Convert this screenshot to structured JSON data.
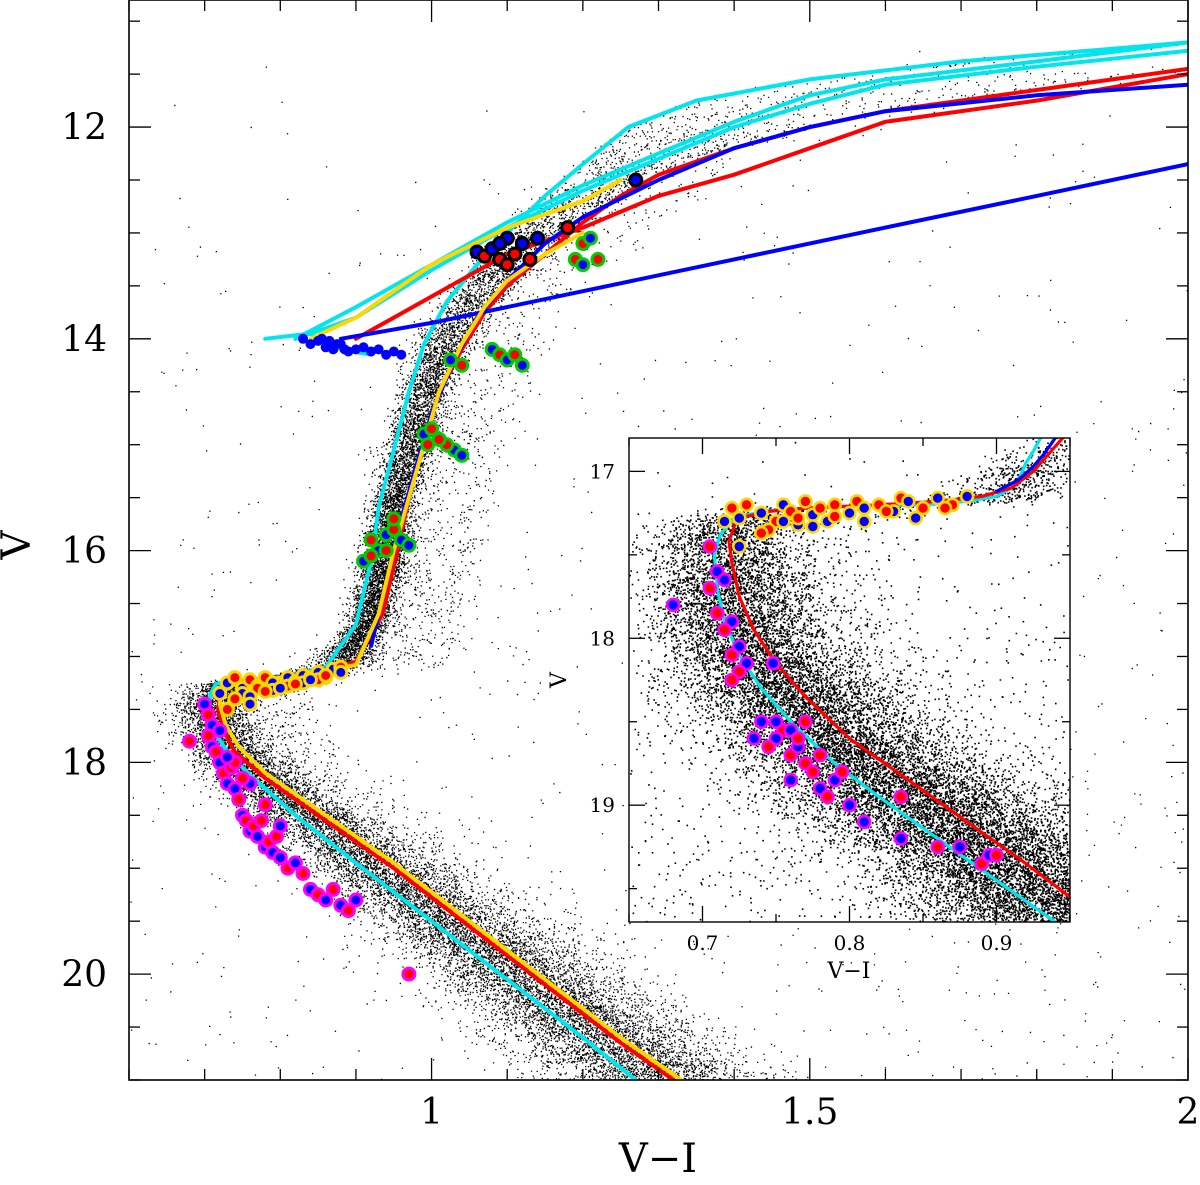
{
  "chart_data": [
    {
      "type": "scatter",
      "title": "",
      "xlabel": "V−I",
      "ylabel": "V",
      "xlim": [
        0.6,
        2.0
      ],
      "ylim": [
        21.0,
        10.8
      ],
      "y_inverted": true,
      "xticks": [
        1,
        1.5,
        2
      ],
      "xtick_labels": [
        "1",
        "1.5",
        "2"
      ],
      "yticks": [
        12,
        14,
        16,
        18,
        20
      ],
      "ytick_labels": [
        "12",
        "14",
        "16",
        "18",
        "20"
      ],
      "grid": false,
      "legend": "none",
      "background_cloud": {
        "color": "#000000",
        "description": "dense field-star CMD (main sequence, subgiant and red-giant branch)"
      },
      "series": [
        {
          "color": "#00e5ee",
          "kind": "isochrone",
          "x": [
            1.27,
            1.2,
            1.1,
            1.0,
            0.9,
            0.82,
            0.76,
            0.73,
            0.712,
            0.705,
            0.708,
            0.715,
            0.72,
            0.75,
            0.8,
            0.86,
            0.9,
            0.92,
            0.93,
            0.95,
            0.97,
            0.99,
            1.02,
            1.06,
            1.1,
            1.15,
            1.2,
            1.26,
            1.35,
            1.5,
            1.7,
            2.0
          ],
          "y": [
            21.0,
            20.6,
            20.05,
            19.5,
            18.95,
            18.5,
            18.12,
            17.9,
            17.7,
            17.5,
            17.35,
            17.26,
            17.25,
            17.22,
            17.2,
            17.1,
            16.7,
            16.1,
            15.6,
            15.05,
            14.5,
            14.05,
            13.65,
            13.3,
            13.0,
            12.65,
            12.35,
            12.0,
            11.75,
            11.55,
            11.38,
            11.2
          ]
        },
        {
          "color": "#00e5ee",
          "kind": "horizontal-branch",
          "x": [
            0.82,
            0.9,
            0.95,
            1.0,
            1.1,
            1.2,
            1.3,
            1.4,
            1.5,
            1.6,
            1.8,
            2.0
          ],
          "y": [
            14.0,
            13.7,
            13.5,
            13.3,
            12.9,
            12.55,
            12.25,
            11.95,
            11.7,
            11.55,
            11.38,
            11.2
          ]
        },
        {
          "color": "#00e5ee",
          "kind": "horizontal-branch",
          "x": [
            0.82,
            0.9,
            1.0,
            1.1,
            1.2,
            1.3,
            1.4,
            1.5,
            1.6,
            1.8,
            2.0
          ],
          "y": [
            14.0,
            13.8,
            13.35,
            12.95,
            12.6,
            12.3,
            12.0,
            11.78,
            11.6,
            11.43,
            11.28
          ]
        },
        {
          "color": "#00e5ee",
          "kind": "horizontal-branch",
          "x": [
            0.78,
            0.84,
            0.86,
            0.88,
            0.92
          ],
          "y": [
            14.0,
            13.95,
            14.05,
            14.1,
            14.15
          ]
        },
        {
          "color": "#ff0000",
          "kind": "isochrone",
          "x": [
            1.32,
            1.25,
            1.15,
            1.05,
            0.95,
            0.85,
            0.78,
            0.74,
            0.725,
            0.718,
            0.72,
            0.73,
            0.75,
            0.8,
            0.86,
            0.9,
            0.935,
            0.955,
            0.97,
            0.99,
            1.01,
            1.04,
            1.07,
            1.1,
            1.15,
            1.2,
            1.25,
            1.3,
            1.4,
            1.5,
            1.6,
            1.7,
            1.8,
            1.9,
            2.0
          ],
          "y": [
            21.0,
            20.65,
            20.1,
            19.55,
            19.0,
            18.5,
            18.15,
            17.9,
            17.7,
            17.5,
            17.35,
            17.27,
            17.24,
            17.2,
            17.12,
            17.05,
            16.6,
            16.0,
            15.5,
            15.0,
            14.5,
            14.1,
            13.75,
            13.5,
            13.2,
            12.9,
            12.65,
            12.45,
            12.2,
            12.0,
            11.85,
            11.75,
            11.65,
            11.55,
            11.45
          ]
        },
        {
          "color": "#ff0000",
          "kind": "horizontal-branch",
          "x": [
            0.9,
            1.0,
            1.1,
            1.2,
            1.3,
            1.4,
            1.5,
            1.6,
            1.8,
            2.0
          ],
          "y": [
            14.0,
            13.6,
            13.2,
            12.95,
            12.65,
            12.45,
            12.2,
            11.95,
            11.75,
            11.5
          ]
        },
        {
          "color": "#0000ff",
          "kind": "isochrone",
          "x": [
            0.92,
            0.94,
            0.96,
            0.98,
            1.0,
            1.03,
            1.06,
            1.1,
            1.15,
            1.2,
            1.3,
            1.4,
            1.5,
            1.6,
            1.8,
            2.0
          ],
          "y": [
            16.9,
            16.3,
            15.7,
            15.2,
            14.7,
            14.2,
            13.8,
            13.45,
            13.1,
            12.85,
            12.5,
            12.2,
            12.0,
            11.85,
            11.7,
            11.6
          ]
        },
        {
          "color": "#0000ff",
          "kind": "horizontal-branch",
          "x": [
            0.88,
            1.0,
            1.2,
            1.4,
            1.6,
            1.8,
            2.0
          ],
          "y": [
            14.0,
            13.85,
            13.55,
            13.25,
            12.95,
            12.65,
            12.35
          ]
        },
        {
          "color": "#ffd700",
          "kind": "isochrone",
          "x": [
            1.33,
            1.25,
            1.15,
            1.05,
            0.95,
            0.85,
            0.78,
            0.745,
            0.728,
            0.72,
            0.722,
            0.73,
            0.75,
            0.8,
            0.85,
            0.9,
            0.93,
            0.95,
            0.97,
            0.99,
            1.01,
            1.04,
            1.07,
            1.1,
            1.15,
            1.2
          ],
          "y": [
            21.0,
            20.6,
            20.05,
            19.5,
            18.95,
            18.45,
            18.1,
            17.85,
            17.65,
            17.45,
            17.32,
            17.27,
            17.25,
            17.2,
            17.15,
            17.08,
            16.6,
            16.0,
            15.5,
            15.0,
            14.5,
            14.05,
            13.7,
            13.45,
            13.2,
            13.0
          ]
        },
        {
          "color": "#ffd700",
          "kind": "horizontal-branch",
          "x": [
            0.84,
            0.9,
            1.0,
            1.1,
            1.2,
            1.25
          ],
          "y": [
            14.0,
            13.8,
            13.3,
            12.95,
            12.7,
            12.5
          ]
        },
        {
          "color": "#00cc00",
          "kind": "rgb-stars-outlined",
          "x": [
            0.91,
            0.92,
            0.93,
            0.92,
            0.94,
            0.95,
            0.96,
            0.95,
            0.97,
            0.94,
            0.99,
            1.0,
            1.01,
            0.995,
            1.03,
            1.02,
            1.04,
            1.01,
            1.025,
            1.04,
            1.08,
            1.09,
            1.1,
            1.11,
            1.12,
            1.2,
            1.21,
            1.19,
            1.2,
            1.22
          ],
          "y": [
            16.1,
            15.9,
            16.0,
            16.05,
            15.85,
            15.8,
            15.9,
            15.7,
            15.95,
            16.0,
            14.9,
            14.85,
            14.95,
            15.0,
            15.05,
            15.0,
            15.1,
            14.95,
            14.2,
            14.25,
            14.1,
            14.15,
            14.2,
            14.15,
            14.25,
            13.1,
            13.05,
            13.25,
            13.3,
            13.25
          ]
        },
        {
          "color": "#ffd700",
          "kind": "subgiant-stars-outlined",
          "x": [
            0.73,
            0.74,
            0.75,
            0.76,
            0.77,
            0.78,
            0.79,
            0.8,
            0.81,
            0.82,
            0.83,
            0.84,
            0.85,
            0.86,
            0.87,
            0.88,
            0.75,
            0.77,
            0.79,
            0.81,
            0.83,
            0.85,
            0.72,
            0.74,
            0.76,
            0.78,
            0.8,
            0.82,
            0.84,
            0.86,
            0.88,
            0.73,
            0.76
          ],
          "y": [
            17.25,
            17.2,
            17.3,
            17.22,
            17.28,
            17.2,
            17.25,
            17.3,
            17.2,
            17.24,
            17.18,
            17.2,
            17.15,
            17.2,
            17.12,
            17.1,
            17.35,
            17.3,
            17.32,
            17.28,
            17.25,
            17.22,
            17.35,
            17.4,
            17.38,
            17.33,
            17.3,
            17.26,
            17.22,
            17.18,
            17.15,
            17.5,
            17.45
          ]
        },
        {
          "color": "#ff00ff",
          "kind": "main-sequence-stars-outlined",
          "x": [
            0.7,
            0.705,
            0.71,
            0.705,
            0.71,
            0.715,
            0.72,
            0.725,
            0.73,
            0.735,
            0.74,
            0.745,
            0.75,
            0.755,
            0.76,
            0.765,
            0.77,
            0.775,
            0.78,
            0.785,
            0.79,
            0.795,
            0.8,
            0.81,
            0.82,
            0.83,
            0.84,
            0.85,
            0.86,
            0.87,
            0.88,
            0.89,
            0.9,
            0.68,
            0.72,
            0.74,
            0.76,
            0.78,
            0.8,
            0.97,
            0.73,
            0.75
          ],
          "y": [
            17.45,
            17.55,
            17.65,
            17.75,
            17.85,
            17.9,
            18.0,
            18.1,
            18.2,
            18.05,
            18.25,
            18.35,
            18.5,
            18.55,
            18.65,
            18.6,
            18.7,
            18.55,
            18.8,
            18.75,
            18.85,
            18.7,
            18.9,
            19.0,
            18.95,
            19.05,
            19.2,
            19.25,
            19.3,
            19.2,
            19.35,
            19.4,
            19.3,
            17.8,
            17.7,
            18.0,
            18.2,
            18.4,
            18.6,
            20.0,
            17.95,
            18.15
          ]
        },
        {
          "color": "#000000",
          "kind": "red-clump-stars-outlined",
          "x": [
            1.06,
            1.07,
            1.08,
            1.09,
            1.1,
            1.11,
            1.12,
            1.13,
            1.14,
            1.18,
            1.09,
            1.1,
            1.27
          ],
          "y": [
            13.18,
            13.22,
            13.15,
            13.25,
            13.05,
            13.2,
            13.1,
            13.25,
            13.05,
            12.95,
            13.1,
            13.3,
            12.5
          ]
        },
        {
          "color": "#0000ff",
          "kind": "horizontal-branch-stars",
          "x": [
            0.83,
            0.84,
            0.85,
            0.86,
            0.87,
            0.88,
            0.89,
            0.9,
            0.91,
            0.92,
            0.93,
            0.94,
            0.95,
            0.96,
            0.855,
            0.865,
            0.875,
            0.885
          ],
          "y": [
            14.0,
            14.05,
            14.02,
            14.08,
            14.1,
            14.05,
            14.12,
            14.1,
            14.08,
            14.12,
            14.1,
            14.15,
            14.12,
            14.15,
            14.0,
            14.02,
            14.05,
            14.1
          ]
        }
      ]
    },
    {
      "type": "scatter",
      "title": "",
      "xlabel": "V−I",
      "ylabel": "V",
      "xlim": [
        0.65,
        0.95
      ],
      "ylim": [
        19.7,
        16.8
      ],
      "y_inverted": true,
      "xticks": [
        0.7,
        0.8,
        0.9
      ],
      "xtick_labels": [
        "0.7",
        "0.8",
        "0.9"
      ],
      "yticks": [
        17,
        18,
        19
      ],
      "ytick_labels": [
        "17",
        "18",
        "19"
      ],
      "grid": false,
      "legend": "none",
      "series": [
        {
          "color": "#00e5ee",
          "kind": "isochrone",
          "x": [
            0.94,
            0.9,
            0.86,
            0.82,
            0.79,
            0.76,
            0.74,
            0.725,
            0.715,
            0.71,
            0.708,
            0.712,
            0.72,
            0.73,
            0.75,
            0.8,
            0.85,
            0.88,
            0.9,
            0.91,
            0.915,
            0.92,
            0.925,
            0.93
          ],
          "y": [
            19.7,
            19.45,
            19.2,
            18.95,
            18.75,
            18.5,
            18.3,
            18.1,
            17.9,
            17.7,
            17.5,
            17.38,
            17.3,
            17.26,
            17.23,
            17.21,
            17.2,
            17.18,
            17.15,
            17.1,
            17.05,
            16.95,
            16.88,
            16.8
          ]
        },
        {
          "color": "#ff0000",
          "kind": "isochrone",
          "x": [
            0.95,
            0.92,
            0.88,
            0.84,
            0.8,
            0.77,
            0.75,
            0.735,
            0.725,
            0.72,
            0.718,
            0.722,
            0.73,
            0.745,
            0.77,
            0.82,
            0.86,
            0.89,
            0.91,
            0.925,
            0.935,
            0.94,
            0.945
          ],
          "y": [
            19.55,
            19.35,
            19.1,
            18.85,
            18.6,
            18.35,
            18.15,
            17.95,
            17.75,
            17.55,
            17.42,
            17.32,
            17.27,
            17.24,
            17.22,
            17.2,
            17.18,
            17.15,
            17.1,
            17.0,
            16.9,
            16.85,
            16.8
          ]
        },
        {
          "color": "#0000ff",
          "kind": "isochrone",
          "x": [
            0.9,
            0.915,
            0.925,
            0.932,
            0.94
          ],
          "y": [
            17.12,
            17.05,
            16.97,
            16.9,
            16.8
          ]
        },
        {
          "color": "#ffd700",
          "kind": "subgiant-stars-outlined",
          "x": [
            0.715,
            0.72,
            0.725,
            0.73,
            0.74,
            0.75,
            0.755,
            0.76,
            0.765,
            0.77,
            0.775,
            0.78,
            0.785,
            0.79,
            0.8,
            0.805,
            0.81,
            0.82,
            0.83,
            0.835,
            0.84,
            0.85,
            0.86,
            0.87,
            0.88,
            0.745,
            0.755,
            0.765,
            0.775,
            0.79,
            0.81,
            0.825,
            0.845,
            0.865,
            0.725,
            0.74
          ],
          "y": [
            17.3,
            17.22,
            17.28,
            17.2,
            17.25,
            17.3,
            17.2,
            17.24,
            17.32,
            17.18,
            17.26,
            17.22,
            17.3,
            17.2,
            17.25,
            17.18,
            17.22,
            17.2,
            17.24,
            17.16,
            17.18,
            17.22,
            17.16,
            17.2,
            17.15,
            17.35,
            17.3,
            17.28,
            17.33,
            17.27,
            17.3,
            17.24,
            17.28,
            17.22,
            17.45,
            17.37
          ]
        },
        {
          "color": "#ff00ff",
          "kind": "main-sequence-stars-outlined",
          "x": [
            0.68,
            0.705,
            0.71,
            0.705,
            0.715,
            0.71,
            0.72,
            0.715,
            0.725,
            0.72,
            0.73,
            0.725,
            0.748,
            0.72,
            0.74,
            0.755,
            0.75,
            0.76,
            0.765,
            0.77,
            0.76,
            0.775,
            0.78,
            0.785,
            0.79,
            0.77,
            0.8,
            0.795,
            0.81,
            0.835,
            0.835,
            0.86,
            0.875,
            0.89,
            0.895,
            0.9,
            0.76,
            0.745,
            0.75,
            0.765,
            0.735,
            0.78
          ],
          "y": [
            17.8,
            17.45,
            17.6,
            17.7,
            17.65,
            17.85,
            17.9,
            17.95,
            18.05,
            18.1,
            18.15,
            18.2,
            18.15,
            18.25,
            18.5,
            18.55,
            18.6,
            18.7,
            18.65,
            18.75,
            18.85,
            18.8,
            18.9,
            18.95,
            18.85,
            18.5,
            19.0,
            18.8,
            19.1,
            18.95,
            19.2,
            19.25,
            19.25,
            19.35,
            19.3,
            19.3,
            18.55,
            18.65,
            18.5,
            18.6,
            18.6,
            18.7
          ]
        }
      ]
    }
  ]
}
